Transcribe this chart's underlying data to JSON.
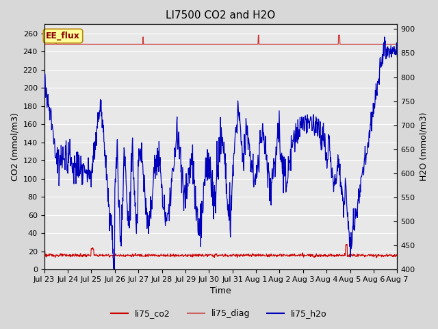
{
  "title": "LI7500 CO2 and H2O",
  "xlabel": "Time",
  "ylabel_left": "CO2 (mmol/m3)",
  "ylabel_right": "H2O (mmol/m3)",
  "ylim_left": [
    0,
    270
  ],
  "ylim_right": [
    400,
    910
  ],
  "yticks_left": [
    0,
    20,
    40,
    60,
    80,
    100,
    120,
    140,
    160,
    180,
    200,
    220,
    240,
    260
  ],
  "yticks_right": [
    400,
    450,
    500,
    550,
    600,
    650,
    700,
    750,
    800,
    850,
    900
  ],
  "fig_bg_color": "#d8d8d8",
  "plot_bg_color": "#e8e8e8",
  "annotation_text": "EE_flux",
  "annotation_bg": "#ffff99",
  "annotation_border": "#b8860b",
  "co2_color": "#cc0000",
  "diag_color": "#cc3333",
  "h2o_color": "#0000bb",
  "legend_entries": [
    "li75_co2",
    "li75_diag",
    "li75_h2o"
  ],
  "x_tick_labels": [
    "Jul 23",
    "Jul 24",
    "Jul 25",
    "Jul 26",
    "Jul 27",
    "Jul 28",
    "Jul 29",
    "Jul 30",
    "Jul 31",
    "Aug 1",
    "Aug 2",
    "Aug 3",
    "Aug 4",
    "Aug 5",
    "Aug 6",
    "Aug 7"
  ],
  "title_fontsize": 11,
  "axis_label_fontsize": 9,
  "tick_fontsize": 8,
  "legend_fontsize": 9,
  "legend_line_color_co2": "#cc0000",
  "legend_line_color_diag": "#cc6666",
  "legend_line_color_h2o": "#0000bb"
}
